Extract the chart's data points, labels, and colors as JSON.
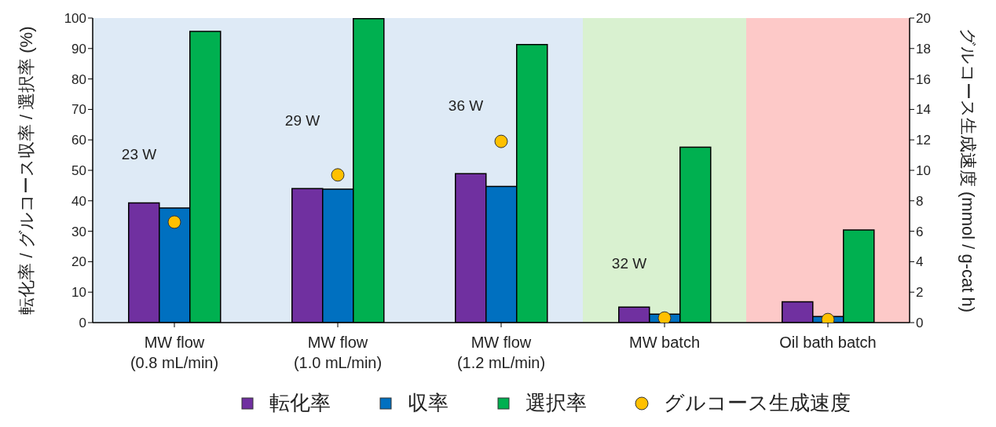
{
  "chart_data": {
    "type": "bar",
    "categories": [
      "MW flow\n(0.8 mL/min)",
      "MW flow\n(1.0 mL/min)",
      "MW flow\n(1.2 mL/min)",
      "MW batch",
      "Oil bath batch"
    ],
    "series": [
      {
        "name": "転化率",
        "color": "#7030a0",
        "values": [
          39.3,
          44.0,
          48.9,
          5.1,
          6.8
        ]
      },
      {
        "name": "収率",
        "color": "#0070c0",
        "values": [
          37.6,
          43.8,
          44.7,
          2.8,
          2.0
        ]
      },
      {
        "name": "選択率",
        "color": "#00b050",
        "values": [
          95.6,
          99.8,
          91.3,
          57.6,
          30.4
        ]
      },
      {
        "name": "グルコース生成速度",
        "type": "scatter",
        "axis": "y2",
        "color": "#ffc000",
        "values": [
          6.6,
          9.7,
          11.9,
          0.3,
          0.2
        ]
      }
    ],
    "ylabel": "転化率 / グルコース収率 / 選択率 (%)",
    "y2label": "グルコース生成速度 (mmol / g-cat h)",
    "ylim": [
      0,
      100
    ],
    "yticks": [
      0,
      10,
      20,
      30,
      40,
      50,
      60,
      70,
      80,
      90,
      100
    ],
    "y2lim": [
      0,
      20
    ],
    "y2ticks": [
      0,
      2,
      4,
      6,
      8,
      10,
      12,
      14,
      16,
      18,
      20
    ],
    "bands": [
      {
        "axis": "x",
        "from": "MW flow\n(0.8 mL/min)",
        "to": "MW flow\n(1.2 mL/min)",
        "color": "#deeaf6"
      },
      {
        "axis": "x",
        "from": "MW batch",
        "to": "MW batch",
        "color": "#d9f1d0"
      },
      {
        "axis": "x",
        "from": "Oil bath batch",
        "to": "Oil bath batch",
        "color": "#fdc9c8"
      }
    ],
    "annotations": [
      "23 W",
      "29 W",
      "36 W",
      "32 W"
    ],
    "grid": false,
    "legend": "bottom",
    "marker": "circle"
  }
}
